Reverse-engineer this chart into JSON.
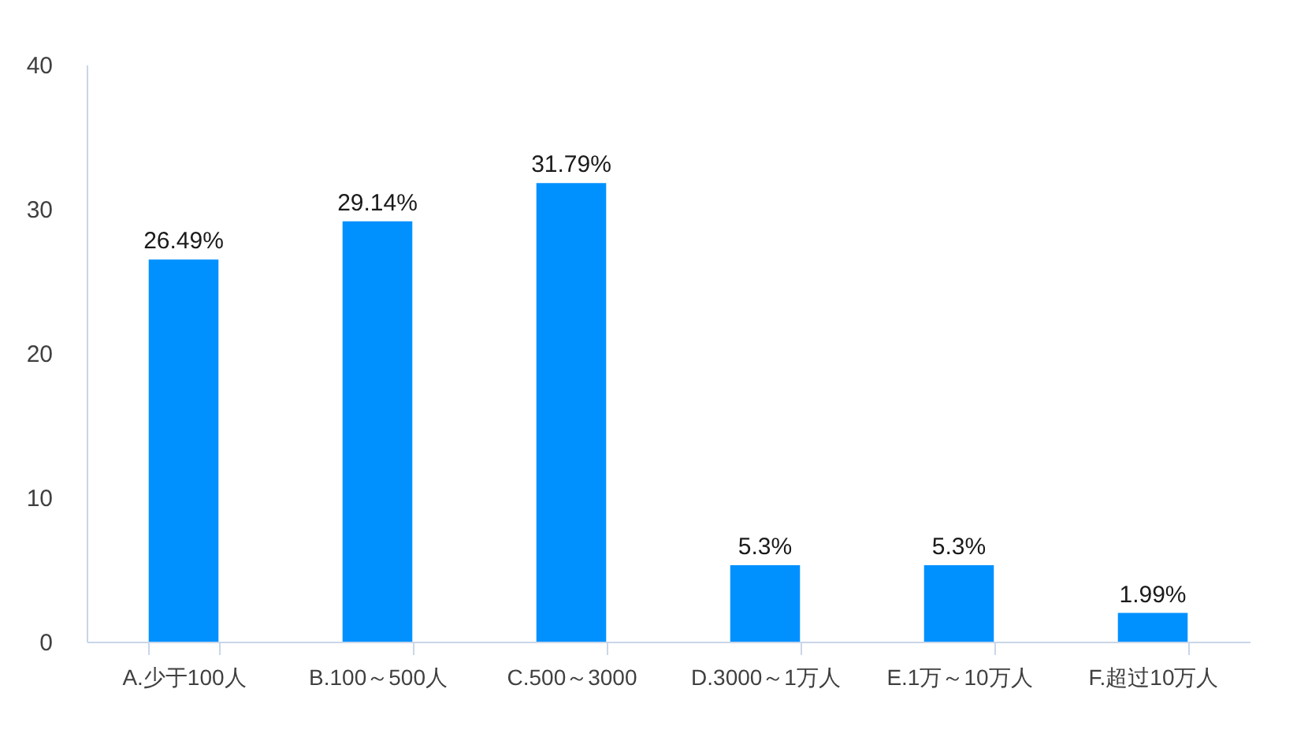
{
  "chart_data": {
    "type": "bar",
    "categories": [
      "A.少于100人",
      "B.100～500人",
      "C.500～3000",
      "D.3000～1万人",
      "E.1万～10万人",
      "F.超过10万人"
    ],
    "values": [
      26.49,
      29.14,
      31.79,
      5.3,
      5.3,
      1.99
    ],
    "value_labels": [
      "26.49%",
      "29.14%",
      "31.79%",
      "5.3%",
      "5.3%",
      "1.99%"
    ],
    "color": "#0091ff",
    "ylim": [
      0,
      40
    ],
    "yticks": [
      0,
      10,
      20,
      30,
      40
    ],
    "grid": false
  }
}
